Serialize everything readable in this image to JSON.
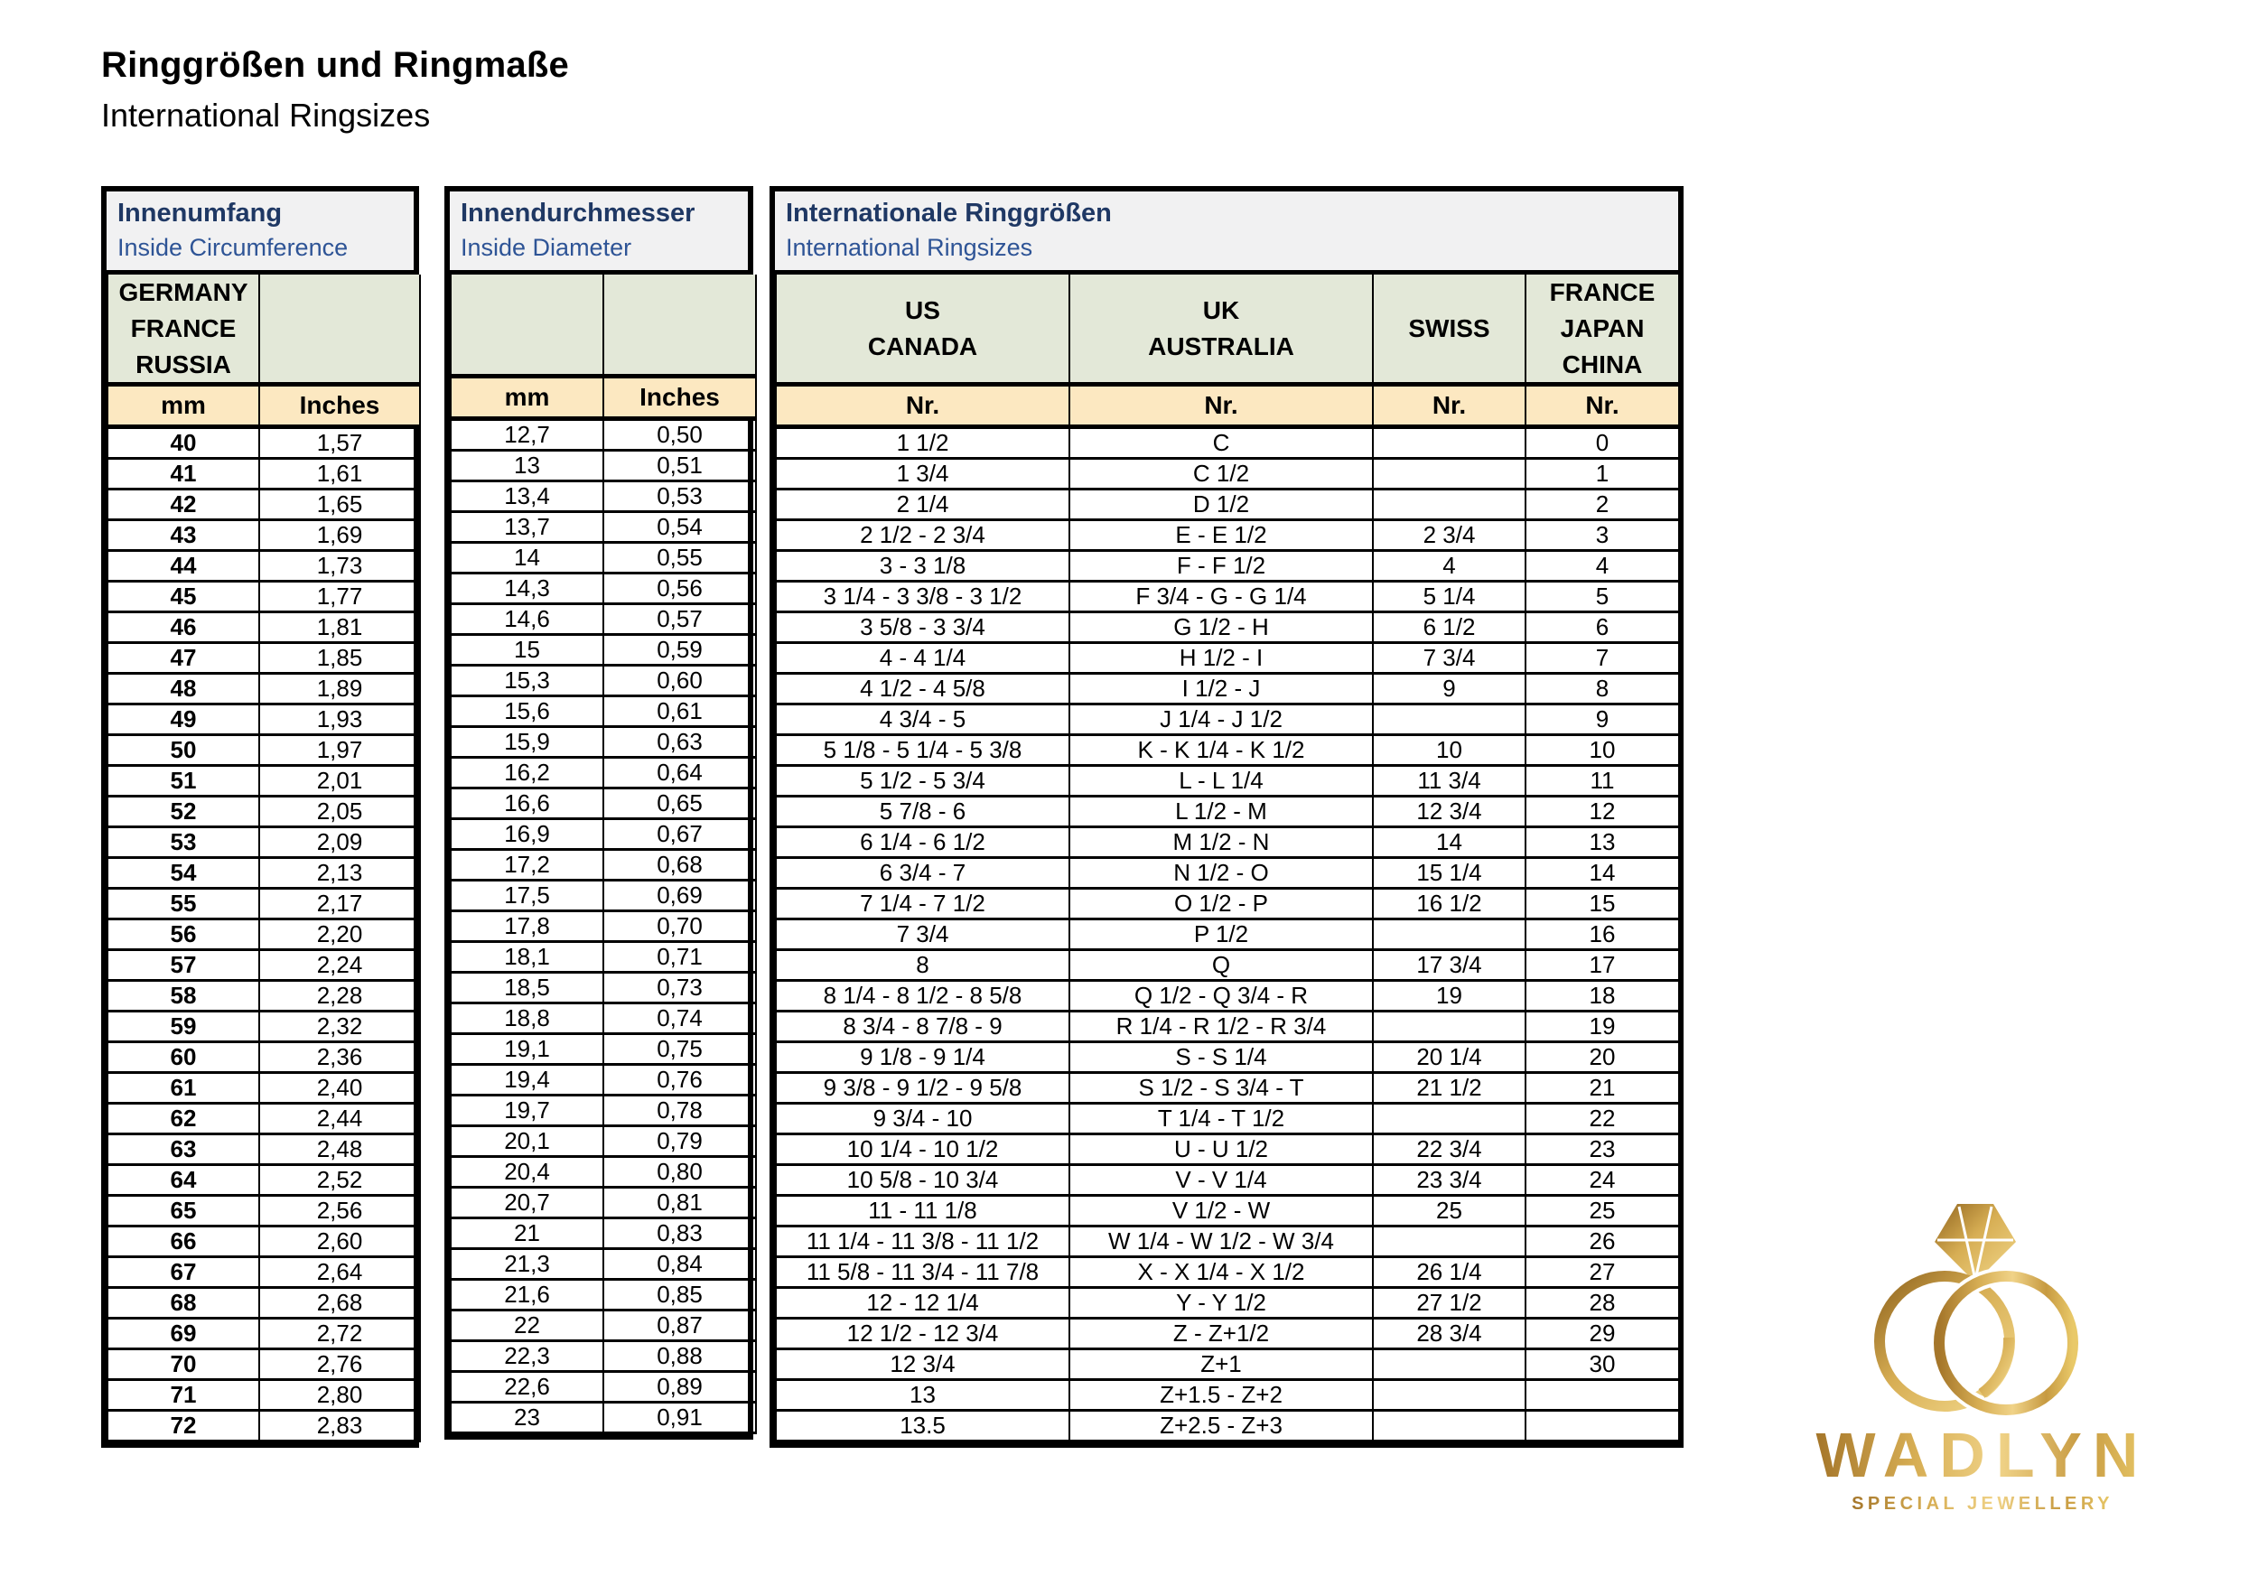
{
  "page": {
    "title": "Ringgrößen und Ringmaße",
    "subtitle": "International Ringsizes"
  },
  "colors": {
    "title_navy": "#1f3864",
    "subtitle_blue": "#2e5496",
    "header_green": "#e3e8d8",
    "unit_cream": "#fce8c1",
    "title_box_gray": "#f1f1f2",
    "logo_gold_dark": "#a5762a",
    "logo_gold_light": "#f0d388"
  },
  "tables": {
    "circumference": {
      "title": "Innenumfang",
      "subtitle": "Inside Circumference",
      "regions": [
        [
          "GERMANY",
          "FRANCE",
          "RUSSIA"
        ],
        []
      ],
      "units": [
        "mm",
        "Inches"
      ],
      "rows": [
        [
          "40",
          "1,57"
        ],
        [
          "41",
          "1,61"
        ],
        [
          "42",
          "1,65"
        ],
        [
          "43",
          "1,69"
        ],
        [
          "44",
          "1,73"
        ],
        [
          "45",
          "1,77"
        ],
        [
          "46",
          "1,81"
        ],
        [
          "47",
          "1,85"
        ],
        [
          "48",
          "1,89"
        ],
        [
          "49",
          "1,93"
        ],
        [
          "50",
          "1,97"
        ],
        [
          "51",
          "2,01"
        ],
        [
          "52",
          "2,05"
        ],
        [
          "53",
          "2,09"
        ],
        [
          "54",
          "2,13"
        ],
        [
          "55",
          "2,17"
        ],
        [
          "56",
          "2,20"
        ],
        [
          "57",
          "2,24"
        ],
        [
          "58",
          "2,28"
        ],
        [
          "59",
          "2,32"
        ],
        [
          "60",
          "2,36"
        ],
        [
          "61",
          "2,40"
        ],
        [
          "62",
          "2,44"
        ],
        [
          "63",
          "2,48"
        ],
        [
          "64",
          "2,52"
        ],
        [
          "65",
          "2,56"
        ],
        [
          "66",
          "2,60"
        ],
        [
          "67",
          "2,64"
        ],
        [
          "68",
          "2,68"
        ],
        [
          "69",
          "2,72"
        ],
        [
          "70",
          "2,76"
        ],
        [
          "71",
          "2,80"
        ],
        [
          "72",
          "2,83"
        ]
      ]
    },
    "diameter": {
      "title": "Innendurchmesser",
      "subtitle": "Inside Diameter",
      "regions": [
        [],
        []
      ],
      "units": [
        "mm",
        "Inches"
      ],
      "rows": [
        [
          "12,7",
          "0,50"
        ],
        [
          "13",
          "0,51"
        ],
        [
          "13,4",
          "0,53"
        ],
        [
          "13,7",
          "0,54"
        ],
        [
          "14",
          "0,55"
        ],
        [
          "14,3",
          "0,56"
        ],
        [
          "14,6",
          "0,57"
        ],
        [
          "15",
          "0,59"
        ],
        [
          "15,3",
          "0,60"
        ],
        [
          "15,6",
          "0,61"
        ],
        [
          "15,9",
          "0,63"
        ],
        [
          "16,2",
          "0,64"
        ],
        [
          "16,6",
          "0,65"
        ],
        [
          "16,9",
          "0,67"
        ],
        [
          "17,2",
          "0,68"
        ],
        [
          "17,5",
          "0,69"
        ],
        [
          "17,8",
          "0,70"
        ],
        [
          "18,1",
          "0,71"
        ],
        [
          "18,5",
          "0,73"
        ],
        [
          "18,8",
          "0,74"
        ],
        [
          "19,1",
          "0,75"
        ],
        [
          "19,4",
          "0,76"
        ],
        [
          "19,7",
          "0,78"
        ],
        [
          "20,1",
          "0,79"
        ],
        [
          "20,4",
          "0,80"
        ],
        [
          "20,7",
          "0,81"
        ],
        [
          "21",
          "0,83"
        ],
        [
          "21,3",
          "0,84"
        ],
        [
          "21,6",
          "0,85"
        ],
        [
          "22",
          "0,87"
        ],
        [
          "22,3",
          "0,88"
        ],
        [
          "22,6",
          "0,89"
        ],
        [
          "23",
          "0,91"
        ]
      ]
    },
    "international": {
      "title": "Internationale Ringgrößen",
      "subtitle": "International Ringsizes",
      "regions": [
        [
          "US",
          "CANADA"
        ],
        [
          "UK",
          "AUSTRALIA"
        ],
        [
          "SWISS"
        ],
        [
          "FRANCE",
          "JAPAN",
          "CHINA"
        ]
      ],
      "units": [
        "Nr.",
        "Nr.",
        "Nr.",
        "Nr."
      ],
      "rows": [
        [
          "1 1/2",
          "C",
          "",
          "0"
        ],
        [
          "1 3/4",
          "C 1/2",
          "",
          "1"
        ],
        [
          "2 1/4",
          "D 1/2",
          "",
          "2"
        ],
        [
          "2 1/2 - 2 3/4",
          "E - E 1/2",
          "2 3/4",
          "3"
        ],
        [
          "3 - 3 1/8",
          "F - F 1/2",
          "4",
          "4"
        ],
        [
          "3 1/4 - 3 3/8 - 3 1/2",
          "F 3/4 - G - G 1/4",
          "5 1/4",
          "5"
        ],
        [
          "3 5/8 - 3 3/4",
          "G 1/2 - H",
          "6 1/2",
          "6"
        ],
        [
          "4 - 4 1/4",
          "H 1/2 - I",
          "7 3/4",
          "7"
        ],
        [
          "4 1/2 - 4 5/8",
          "I 1/2 - J",
          "9",
          "8"
        ],
        [
          "4 3/4 - 5",
          "J 1/4 - J 1/2",
          "",
          "9"
        ],
        [
          "5 1/8 - 5 1/4 - 5 3/8",
          "K - K 1/4 - K 1/2",
          "10",
          "10"
        ],
        [
          "5 1/2 - 5 3/4",
          "L - L 1/4",
          "11 3/4",
          "11"
        ],
        [
          "5 7/8 - 6",
          "L 1/2 - M",
          "12 3/4",
          "12"
        ],
        [
          "6 1/4 - 6 1/2",
          "M 1/2 - N",
          "14",
          "13"
        ],
        [
          "6 3/4 - 7",
          "N 1/2 - O",
          "15 1/4",
          "14"
        ],
        [
          "7 1/4 - 7 1/2",
          "O 1/2 - P",
          "16 1/2",
          "15"
        ],
        [
          "7 3/4",
          "P 1/2",
          "",
          "16"
        ],
        [
          "8",
          "Q",
          "17 3/4",
          "17"
        ],
        [
          "8 1/4 - 8 1/2 - 8 5/8",
          "Q 1/2 - Q 3/4 - R",
          "19",
          "18"
        ],
        [
          "8 3/4 - 8 7/8 - 9",
          "R 1/4 - R 1/2 - R 3/4",
          "",
          "19"
        ],
        [
          "9 1/8 - 9 1/4",
          "S - S 1/4",
          "20 1/4",
          "20"
        ],
        [
          "9 3/8 - 9 1/2 - 9 5/8",
          "S 1/2 - S 3/4 - T",
          "21 1/2",
          "21"
        ],
        [
          "9 3/4 - 10",
          "T 1/4 - T 1/2",
          "",
          "22"
        ],
        [
          "10 1/4 - 10 1/2",
          "U - U 1/2",
          "22 3/4",
          "23"
        ],
        [
          "10 5/8 - 10 3/4",
          "V - V 1/4",
          "23 3/4",
          "24"
        ],
        [
          "11 - 11 1/8",
          "V 1/2 - W",
          "25",
          "25"
        ],
        [
          "11 1/4 - 11 3/8 - 11 1/2",
          "W 1/4 - W 1/2 - W 3/4",
          "",
          "26"
        ],
        [
          "11 5/8 - 11 3/4 - 11 7/8",
          "X - X 1/4 - X 1/2",
          "26 1/4",
          "27"
        ],
        [
          "12 - 12 1/4",
          "Y - Y 1/2",
          "27 1/2",
          "28"
        ],
        [
          "12 1/2 - 12 3/4",
          "Z - Z+1/2",
          "28 3/4",
          "29"
        ],
        [
          "12 3/4",
          "Z+1",
          "",
          "30"
        ],
        [
          "13",
          "Z+1.5 - Z+2",
          "",
          ""
        ],
        [
          "13.5",
          "Z+2.5 - Z+3",
          "",
          ""
        ]
      ]
    }
  },
  "logo": {
    "brand": "WADLYN",
    "tagline": "SPECIAL JEWELLERY"
  }
}
